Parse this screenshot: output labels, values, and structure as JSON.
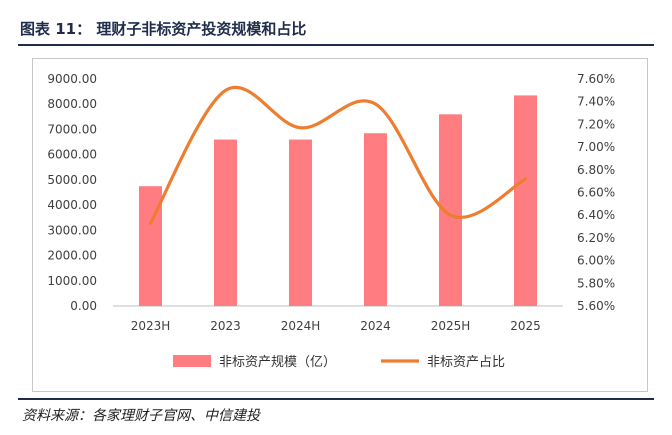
{
  "title": "图表 11：  理财子非标资产投资规模和占比",
  "source": "资料来源：各家理财子官网、中信建投",
  "colors": {
    "bar": "#ff7c80",
    "line": "#ed7d31",
    "header": "#1f2d4a"
  },
  "chart_data": {
    "type": "bar+line",
    "categories": [
      "2023H",
      "2023",
      "2024H",
      "2024",
      "2025H",
      "2025"
    ],
    "series": [
      {
        "name": "非标资产规模（亿）",
        "type": "bar",
        "axis": "left",
        "values": [
          4750,
          6600,
          6600,
          6850,
          7600,
          8350
        ]
      },
      {
        "name": "非标资产占比",
        "type": "line",
        "axis": "right",
        "values": [
          6.33,
          7.5,
          7.17,
          7.38,
          6.4,
          6.72
        ]
      }
    ],
    "y_left": {
      "min": 0,
      "max": 9000,
      "step": 1000,
      "tick_labels": [
        "0.00",
        "1000.00",
        "2000.00",
        "3000.00",
        "4000.00",
        "5000.00",
        "6000.00",
        "7000.00",
        "8000.00",
        "9000.00"
      ]
    },
    "y_right": {
      "min": 5.6,
      "max": 7.6,
      "step": 0.2,
      "tick_labels": [
        "5.60%",
        "5.80%",
        "6.00%",
        "6.20%",
        "6.40%",
        "6.60%",
        "6.80%",
        "7.00%",
        "7.20%",
        "7.40%",
        "7.60%"
      ]
    },
    "legend": {
      "position": "bottom",
      "items": [
        {
          "label": "非标资产规模（亿）",
          "kind": "bar"
        },
        {
          "label": "非标资产占比",
          "kind": "line"
        }
      ]
    },
    "grid": false
  }
}
